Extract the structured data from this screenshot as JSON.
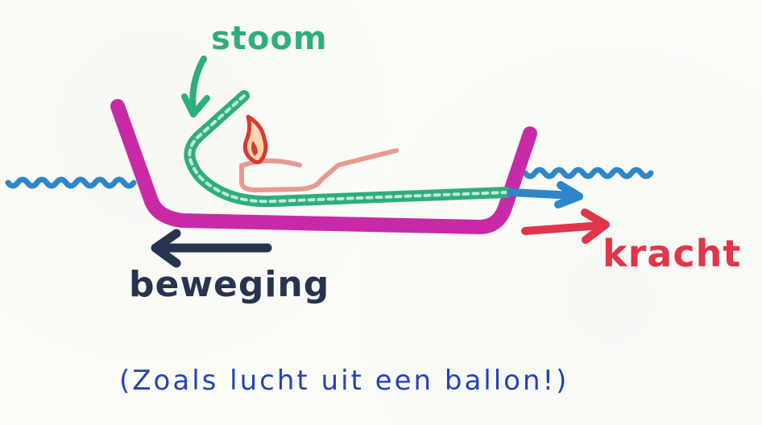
{
  "labels": {
    "stoom": "stoom",
    "kracht": "kracht",
    "beweging": "beweging",
    "note": "(Zoals lucht uit een ballon!)"
  },
  "colors": {
    "boat": "#c82aa7",
    "pipe": "#2ead7f",
    "water": "#2d86c9",
    "kracht": "#e0354b",
    "beweging": "#27344f",
    "flame": "#d93a2f",
    "burner": "#e79a90",
    "note": "#2343b8"
  }
}
